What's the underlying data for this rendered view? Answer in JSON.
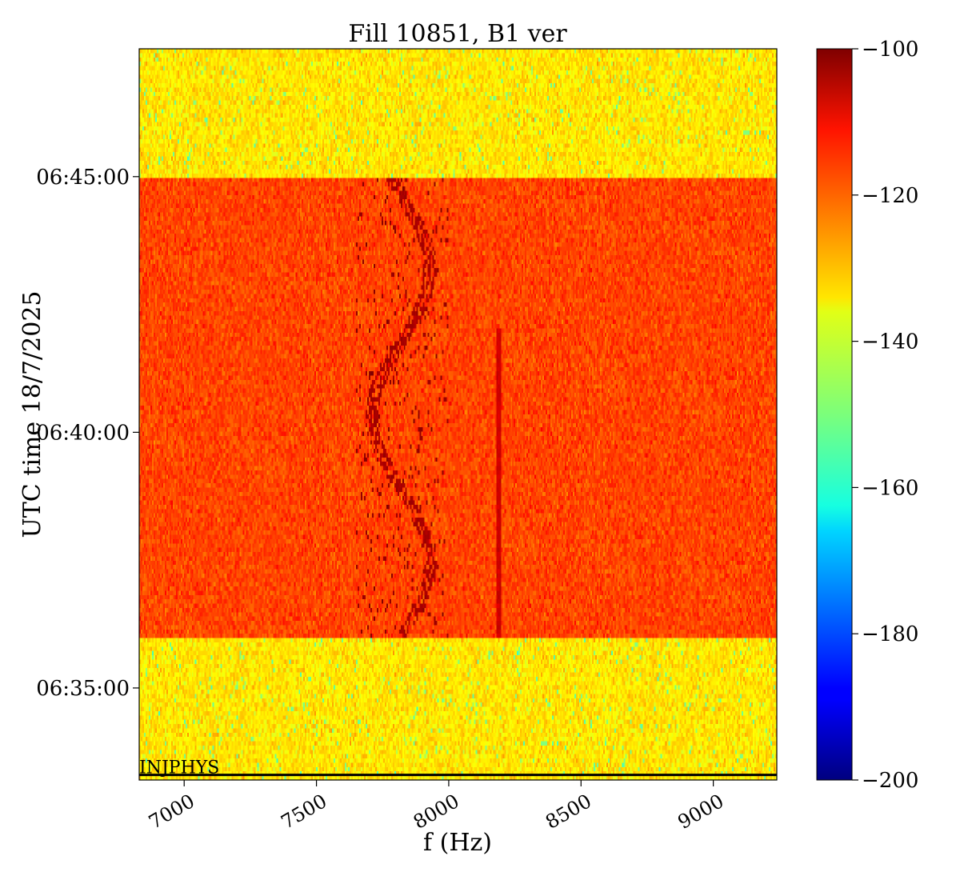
{
  "chart_data": {
    "type": "heatmap",
    "title": "Fill 10851, B1 ver",
    "xlabel": "f (Hz)",
    "ylabel": "UTC time 18/7/2025",
    "xlim": [
      6830,
      9240
    ],
    "x_ticks": [
      7000,
      7500,
      8000,
      8500,
      9000
    ],
    "x_tick_labels": [
      "7000",
      "7500",
      "8000",
      "8500",
      "9000"
    ],
    "y_ticks": [
      "06:35:00",
      "06:40:00",
      "06:45:00"
    ],
    "y_tick_labels": [
      "06:35:00",
      "06:40:00",
      "06:45:00"
    ],
    "ylim": [
      "06:33:12",
      "06:47:30"
    ],
    "colorbar": {
      "colormap": "jet",
      "range": [
        -200,
        -100
      ],
      "ticks": [
        -100,
        -120,
        -140,
        -160,
        -180,
        -200
      ],
      "tick_labels": [
        "−100",
        "−120",
        "−140",
        "−160",
        "−180",
        "−200"
      ]
    },
    "regions": [
      {
        "t_start": "06:33:12",
        "t_end": "06:36:00",
        "mean_level": -135
      },
      {
        "t_start": "06:36:00",
        "t_end": "06:45:00",
        "mean_level": -119
      },
      {
        "t_start": "06:45:00",
        "t_end": "06:47:30",
        "mean_level": -135
      }
    ],
    "features": [
      {
        "type": "line",
        "f_hz": 8190,
        "t_start": "06:36:00",
        "t_end": "06:42:00",
        "level": -108
      },
      {
        "type": "tune_band",
        "f_hz_range": [
          7650,
          8000
        ],
        "t_start": "06:36:00",
        "t_end": "06:45:00",
        "level": -104
      }
    ],
    "annotation": {
      "label": "INJPHYS",
      "time": "06:33:18"
    }
  }
}
